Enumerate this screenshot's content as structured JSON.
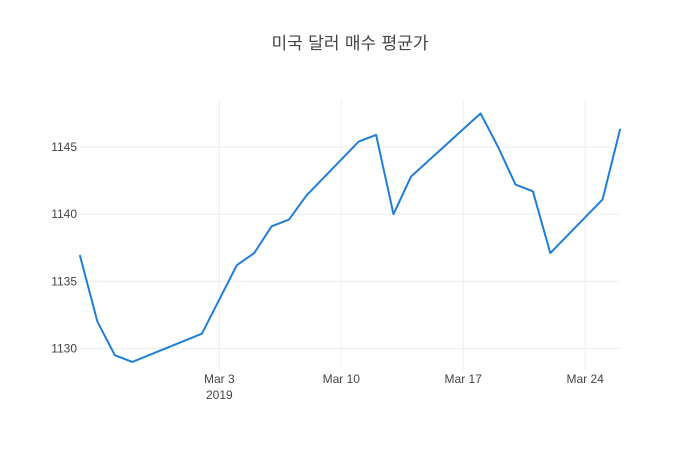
{
  "chart_data": {
    "type": "line",
    "title": "미국 달러 매수 평균가",
    "xlabel": "",
    "ylabel": "",
    "line_color": "#1f7fd8",
    "grid": true,
    "legend": "none",
    "x_range": [
      "2019-02-23",
      "2019-03-26"
    ],
    "ylim": [
      1128.4,
      1148.5
    ],
    "y_ticks": [
      1130,
      1135,
      1140,
      1145
    ],
    "x_ticks": [
      {
        "date": "2019-03-03",
        "label": "Mar 3",
        "sublabel": "2019"
      },
      {
        "date": "2019-03-10",
        "label": "Mar 10",
        "sublabel": ""
      },
      {
        "date": "2019-03-17",
        "label": "Mar 17",
        "sublabel": ""
      },
      {
        "date": "2019-03-24",
        "label": "Mar 24",
        "sublabel": ""
      }
    ],
    "series": [
      {
        "x": [
          "2019-02-23",
          "2019-02-24",
          "2019-02-25",
          "2019-02-26",
          "2019-03-02",
          "2019-03-04",
          "2019-03-05",
          "2019-03-06",
          "2019-03-07",
          "2019-03-08",
          "2019-03-11",
          "2019-03-12",
          "2019-03-13",
          "2019-03-14",
          "2019-03-18",
          "2019-03-19",
          "2019-03-20",
          "2019-03-21",
          "2019-03-22",
          "2019-03-25",
          "2019-03-26"
        ],
        "y": [
          1136.9,
          1132.0,
          1129.5,
          1129.0,
          1131.1,
          1136.2,
          1137.1,
          1139.1,
          1139.6,
          1141.4,
          1145.4,
          1145.9,
          1140.0,
          1142.8,
          1147.5,
          1145.0,
          1142.2,
          1141.7,
          1137.1,
          1141.1,
          1146.3
        ]
      }
    ]
  }
}
